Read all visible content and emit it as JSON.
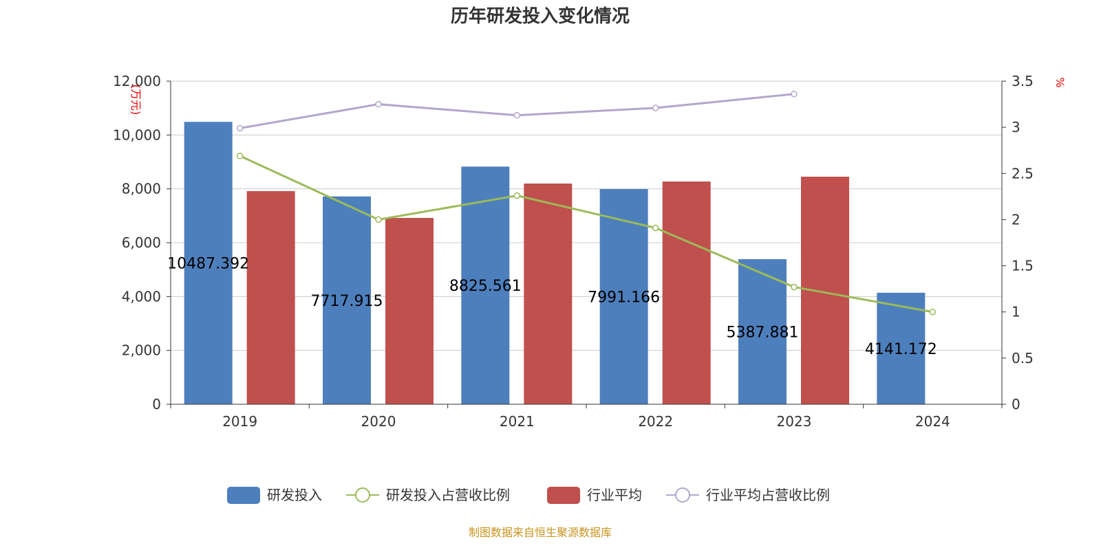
{
  "chart_data": {
    "type": "bar",
    "title": "历年研发投入变化情况",
    "categories": [
      "2019",
      "2020",
      "2021",
      "2022",
      "2023",
      "2024"
    ],
    "ylabel_left": "(万元)",
    "ylabel_right": "%",
    "ylim_left": [
      0,
      12000
    ],
    "ylim_right": [
      0,
      3.5
    ],
    "yticks_left": [
      "0",
      "2,000",
      "4,000",
      "6,000",
      "8,000",
      "10,000",
      "12,000"
    ],
    "yticks_right": [
      "0",
      "0.5",
      "1",
      "1.5",
      "2",
      "2.5",
      "3",
      "3.5"
    ],
    "series": [
      {
        "name": "研发投入",
        "type": "bar",
        "axis": "left",
        "color": "#4e7fbd",
        "values": [
          10487.392,
          7717.915,
          8825.561,
          7991.166,
          5387.881,
          4141.172
        ],
        "labels": [
          "10487.392",
          "7717.915",
          "8825.561",
          "7991.166",
          "5387.881",
          "4141.172"
        ]
      },
      {
        "name": "研发投入占营收比例",
        "type": "line",
        "axis": "right",
        "color": "#9bbb59",
        "values": [
          2.69,
          2.0,
          2.26,
          1.91,
          1.27,
          1.0
        ]
      },
      {
        "name": "行业平均",
        "type": "bar",
        "axis": "left",
        "color": "#c0504d",
        "values": [
          7915,
          6919,
          8196,
          8272,
          8451,
          null
        ]
      },
      {
        "name": "行业平均占营收比例",
        "type": "line",
        "axis": "right",
        "color": "#b3a6cc",
        "values": [
          2.99,
          3.25,
          3.13,
          3.21,
          3.36,
          null
        ]
      }
    ],
    "grid": true,
    "legend_position": "bottom",
    "source": "制图数据来自恒生聚源数据库"
  }
}
